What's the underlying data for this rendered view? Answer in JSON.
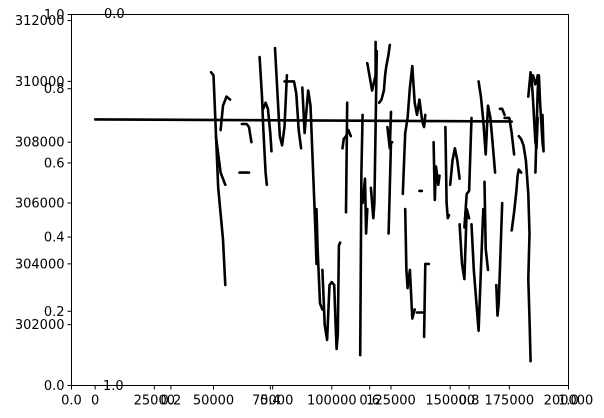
{
  "chart_data": [
    {
      "type": "line",
      "description_axes": "primary",
      "xlim": [
        -10000,
        200000
      ],
      "ylim": [
        300000,
        312200
      ],
      "x_ticks": [
        "0",
        "25000",
        "50000",
        "75000",
        "100000",
        "125000",
        "150000",
        "175000",
        "200000"
      ],
      "x_tick_values": [
        0,
        25000,
        50000,
        75000,
        100000,
        125000,
        150000,
        175000,
        200000
      ],
      "y_ticks": [
        "302000",
        "304000",
        "306000",
        "308000",
        "310000",
        "312000"
      ],
      "y_tick_values": [
        302000,
        304000,
        306000,
        308000,
        310000,
        312000
      ],
      "series": [
        {
          "color": "#000000",
          "segments": [
            [
              [
                0,
                308750
              ],
              [
                176000,
                308680
              ]
            ],
            [
              [
                49000,
                310300
              ],
              [
                50000,
                310200
              ],
              [
                52000,
                306500
              ],
              [
                54000,
                304800
              ],
              [
                55000,
                303300
              ]
            ],
            [
              [
                51000,
                308200
              ],
              [
                53000,
                307000
              ],
              [
                55000,
                306600
              ]
            ],
            [
              [
                53000,
                308400
              ],
              [
                54000,
                309200
              ],
              [
                55500,
                309500
              ],
              [
                57000,
                309400
              ]
            ],
            [
              [
                62000,
                308600
              ],
              [
                64000,
                308600
              ],
              [
                65000,
                308500
              ],
              [
                66000,
                308000
              ]
            ],
            [
              [
                61000,
                307000
              ],
              [
                65000,
                307000
              ]
            ],
            [
              [
                69500,
                310800
              ],
              [
                70500,
                309500
              ],
              [
                71000,
                308500
              ],
              [
                72000,
                307000
              ],
              [
                72500,
                306600
              ]
            ],
            [
              [
                71000,
                309100
              ],
              [
                72000,
                309300
              ],
              [
                73000,
                309100
              ],
              [
                74000,
                308300
              ],
              [
                74500,
                307700
              ]
            ],
            [
              [
                76000,
                311100
              ],
              [
                78000,
                308200
              ],
              [
                79000,
                307900
              ],
              [
                80000,
                308500
              ],
              [
                81000,
                310200
              ]
            ],
            [
              [
                80000,
                310000
              ],
              [
                82000,
                310000
              ],
              [
                84000,
                310000
              ],
              [
                85000,
                309600
              ],
              [
                86000,
                308400
              ],
              [
                87000,
                307800
              ]
            ],
            [
              [
                87500,
                309800
              ],
              [
                88500,
                308300
              ],
              [
                89000,
                308800
              ],
              [
                90000,
                309700
              ],
              [
                91000,
                309200
              ],
              [
                92000,
                307200
              ],
              [
                93000,
                305200
              ],
              [
                93500,
                304000
              ]
            ],
            [
              [
                93500,
                305800
              ],
              [
                94000,
                304500
              ],
              [
                95000,
                302700
              ],
              [
                96000,
                302500
              ]
            ],
            [
              [
                96000,
                303800
              ],
              [
                97000,
                302000
              ],
              [
                98000,
                301500
              ],
              [
                99000,
                303300
              ],
              [
                100000,
                303400
              ],
              [
                101000,
                303300
              ]
            ],
            [
              [
                101000,
                303300
              ],
              [
                101500,
                302200
              ],
              [
                102000,
                301200
              ],
              [
                102500,
                301700
              ],
              [
                103000,
                304600
              ],
              [
                103500,
                304700
              ]
            ],
            [
              [
                104500,
                307800
              ],
              [
                105000,
                308100
              ],
              [
                106000,
                308200
              ],
              [
                107000,
                308400
              ],
              [
                108000,
                308200
              ]
            ],
            [
              [
                106500,
                309300
              ],
              [
                106000,
                305700
              ]
            ],
            [
              [
                113000,
                308900
              ],
              [
                112500,
                307000
              ],
              [
                112000,
                301000
              ]
            ],
            [
              [
                113000,
                306000
              ],
              [
                114000,
                306800
              ],
              [
                114500,
                305000
              ],
              [
                115000,
                305800
              ]
            ],
            [
              [
                115000,
                310600
              ],
              [
                117000,
                309700
              ],
              [
                118500,
                310200
              ],
              [
                118500,
                311300
              ]
            ],
            [
              [
                116500,
                306500
              ],
              [
                117500,
                305500
              ],
              [
                118000,
                306000
              ],
              [
                119000,
                311000
              ]
            ],
            [
              [
                120000,
                309300
              ],
              [
                121000,
                309400
              ],
              [
                122000,
                309700
              ],
              [
                122500,
                310200
              ],
              [
                123000,
                310500
              ],
              [
                124000,
                310900
              ],
              [
                124500,
                311200
              ]
            ],
            [
              [
                123500,
                308500
              ],
              [
                124500,
                307800
              ],
              [
                125000,
                309000
              ]
            ],
            [
              [
                124000,
                305000
              ],
              [
                125000,
                308000
              ],
              [
                125500,
                308000
              ]
            ],
            [
              [
                130000,
                306300
              ],
              [
                131000,
                308300
              ],
              [
                132000,
                308800
              ],
              [
                133000,
                309800
              ],
              [
                134000,
                310500
              ]
            ],
            [
              [
                131000,
                305800
              ],
              [
                131500,
                303800
              ],
              [
                132000,
                303200
              ],
              [
                133000,
                303800
              ],
              [
                134000,
                302200
              ],
              [
                135000,
                302500
              ]
            ],
            [
              [
                134000,
                310500
              ],
              [
                135000,
                309300
              ],
              [
                136000,
                308900
              ],
              [
                137000,
                309400
              ],
              [
                138000,
                308800
              ]
            ],
            [
              [
                138000,
                308800
              ],
              [
                138500,
                308600
              ],
              [
                139000,
                308500
              ],
              [
                139500,
                308900
              ]
            ],
            [
              [
                136000,
                302400
              ],
              [
                137000,
                302400
              ],
              [
                138000,
                302400
              ],
              [
                139000,
                302400
              ]
            ],
            [
              [
                137000,
                306400
              ],
              [
                138000,
                306400
              ]
            ],
            [
              [
                139000,
                301600
              ],
              [
                139500,
                304000
              ],
              [
                140000,
                304000
              ],
              [
                141000,
                304000
              ]
            ],
            [
              [
                143000,
                308000
              ],
              [
                143500,
                306100
              ],
              [
                144000,
                307200
              ],
              [
                145000,
                306600
              ],
              [
                145500,
                306900
              ]
            ],
            [
              [
                148000,
                308500
              ],
              [
                148500,
                306000
              ],
              [
                149000,
                305500
              ],
              [
                149500,
                305600
              ]
            ],
            [
              [
                150000,
                306600
              ],
              [
                151000,
                307400
              ],
              [
                152000,
                307800
              ],
              [
                153000,
                307400
              ],
              [
                154000,
                306800
              ]
            ],
            [
              [
                154000,
                305300
              ],
              [
                155000,
                304000
              ],
              [
                156000,
                303500
              ],
              [
                157000,
                305800
              ],
              [
                158000,
                305500
              ]
            ],
            [
              [
                156000,
                305200
              ],
              [
                157000,
                306300
              ],
              [
                158000,
                306400
              ],
              [
                159000,
                308800
              ]
            ],
            [
              [
                159000,
                305300
              ],
              [
                160000,
                303800
              ],
              [
                161000,
                302800
              ],
              [
                162000,
                301800
              ],
              [
                163000,
                303800
              ],
              [
                164000,
                305800
              ]
            ],
            [
              [
                162000,
                310000
              ],
              [
                163000,
                309500
              ],
              [
                164000,
                308700
              ],
              [
                165000,
                307600
              ],
              [
                166000,
                309200
              ],
              [
                167000,
                308800
              ],
              [
                168000,
                307900
              ],
              [
                169000,
                307000
              ]
            ],
            [
              [
                164500,
                306700
              ],
              [
                165000,
                304500
              ],
              [
                166000,
                303800
              ]
            ],
            [
              [
                169500,
                303300
              ],
              [
                170000,
                302300
              ],
              [
                170500,
                302700
              ],
              [
                171000,
                303800
              ],
              [
                172000,
                306000
              ]
            ],
            [
              [
                173000,
                308800
              ],
              [
                175000,
                308800
              ],
              [
                176000,
                308300
              ],
              [
                177000,
                307600
              ]
            ],
            [
              [
                171000,
                309100
              ],
              [
                172000,
                309100
              ],
              [
                173000,
                308900
              ]
            ],
            [
              [
                176000,
                305100
              ],
              [
                177000,
                305700
              ],
              [
                178000,
                306400
              ],
              [
                178500,
                306900
              ],
              [
                179000,
                307100
              ],
              [
                180000,
                307000
              ]
            ],
            [
              [
                179000,
                308200
              ],
              [
                180000,
                308100
              ],
              [
                181000,
                307900
              ],
              [
                182000,
                307400
              ],
              [
                183000,
                306300
              ],
              [
                183500,
                305000
              ],
              [
                183000,
                303500
              ]
            ],
            [
              [
                183000,
                303500
              ],
              [
                183500,
                302200
              ],
              [
                184000,
                300800
              ]
            ],
            [
              [
                183000,
                309500
              ],
              [
                184000,
                310300
              ],
              [
                184500,
                310000
              ],
              [
                185000,
                309400
              ],
              [
                186000,
                308000
              ],
              [
                186500,
                307800
              ],
              [
                187000,
                308800
              ]
            ],
            [
              [
                186000,
                307000
              ],
              [
                187000,
                309700
              ],
              [
                187500,
                310200
              ],
              [
                188000,
                309300
              ],
              [
                189000,
                308000
              ],
              [
                189500,
                307700
              ],
              [
                189000,
                308900
              ]
            ],
            [
              [
                185000,
                310200
              ],
              [
                186000,
                309900
              ],
              [
                186500,
                310000
              ],
              [
                187000,
                310200
              ]
            ]
          ]
        }
      ]
    },
    {
      "type": "line",
      "description_axes": "overlay-empty",
      "xlim": [
        0,
        1
      ],
      "ylim": [
        0,
        1
      ],
      "x_ticks": [
        "0.0",
        "0.2",
        "0.4",
        "0.6",
        "0.8",
        "1.0"
      ],
      "y_ticks": [
        "0.0",
        "0.2",
        "0.4",
        "0.6",
        "0.8",
        "1.0"
      ],
      "series": []
    }
  ],
  "stray_labels": {
    "top": "0.0",
    "bottom": "1.0"
  }
}
